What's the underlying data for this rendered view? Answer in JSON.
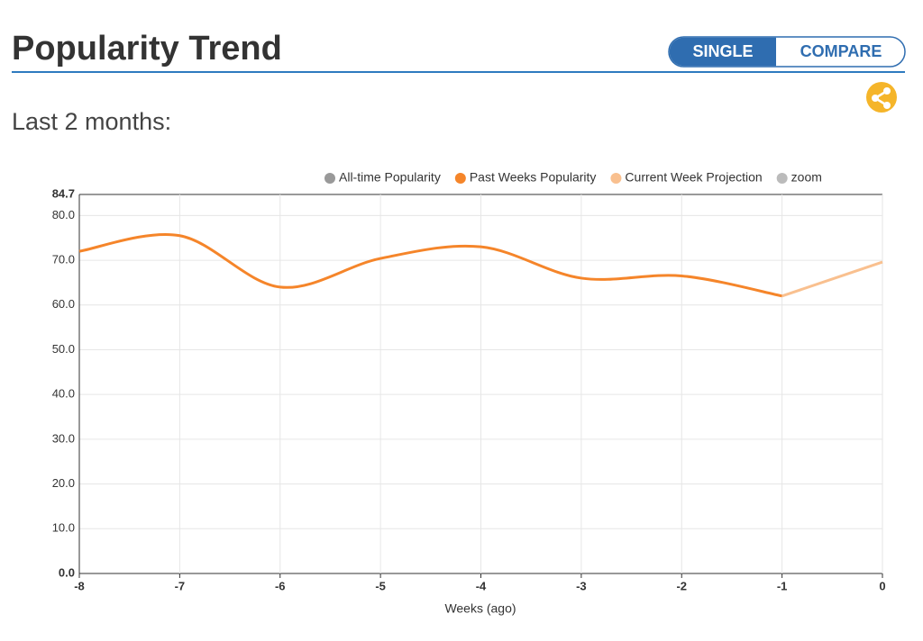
{
  "header": {
    "title": "Popularity Trend",
    "toggle": [
      "SINGLE",
      "COMPARE"
    ],
    "subtitle": "Last 2 months:"
  },
  "chart_data": {
    "type": "line",
    "x_label": "Weeks (ago)",
    "x": [
      -8,
      -7,
      -6,
      -5,
      -4,
      -3,
      -2,
      -1,
      0
    ],
    "xlim": [
      -8,
      0
    ],
    "xticks": [
      -8,
      -7,
      -6,
      -5,
      -4,
      -3,
      -2,
      -1,
      0
    ],
    "ylim": [
      0,
      84.7
    ],
    "yticks": [
      {
        "value": 0,
        "label": "0.0"
      },
      {
        "value": 10,
        "label": "10.0"
      },
      {
        "value": 20,
        "label": "20.0"
      },
      {
        "value": 30,
        "label": "30.0"
      },
      {
        "value": 40,
        "label": "40.0"
      },
      {
        "value": 50,
        "label": "50.0"
      },
      {
        "value": 60,
        "label": "60.0"
      },
      {
        "value": 70,
        "label": "70.0"
      },
      {
        "value": 80,
        "label": "80.0"
      },
      84.7
    ],
    "grid": true,
    "smooth": true,
    "series": [
      {
        "name": "All-time Popularity",
        "color": "#999999",
        "values": [
          null,
          null,
          null,
          null,
          null,
          null,
          null,
          null,
          null
        ]
      },
      {
        "name": "Past Weeks Popularity",
        "color": "#f5852a",
        "values": [
          72,
          75.5,
          64,
          70.4,
          73,
          66,
          66.5,
          62,
          null
        ]
      },
      {
        "name": "Current Week Projection",
        "color": "#f9c08f",
        "values": [
          null,
          null,
          null,
          null,
          null,
          null,
          null,
          62,
          69.6
        ]
      },
      {
        "name": "zoom",
        "color": "#bbbbbb",
        "values": [
          null,
          null,
          null,
          null,
          null,
          null,
          null,
          null,
          null
        ]
      }
    ]
  }
}
